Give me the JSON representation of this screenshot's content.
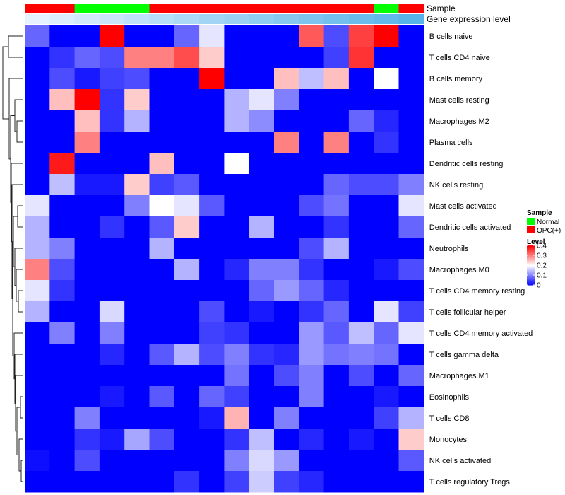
{
  "chart_data": {
    "type": "heatmap",
    "title": "",
    "annotation_labels": {
      "sample": "Sample",
      "expression": "Gene expression level"
    },
    "sample_groups": [
      "OPC(+)",
      "OPC(+)",
      "Normal",
      "Normal",
      "Normal",
      "OPC(+)",
      "OPC(+)",
      "OPC(+)",
      "OPC(+)",
      "OPC(+)",
      "OPC(+)",
      "OPC(+)",
      "OPC(+)",
      "OPC(+)",
      "Normal",
      "OPC(+)"
    ],
    "expression_levels": [
      0,
      0.07,
      0.14,
      0.2,
      0.27,
      0.33,
      0.4,
      0.47,
      0.53,
      0.6,
      0.67,
      0.73,
      0.8,
      0.87,
      0.93,
      1
    ],
    "rows": [
      "B cells naive",
      "T cells CD4 naive",
      "B cells memory",
      "Mast cells resting",
      "Macrophages M2",
      "Plasma cells",
      "Dendritic cells resting",
      "NK cells resting",
      "Mast cells activated",
      "Dendritic cells activated",
      "Neutrophils",
      "Macrophages M0",
      "T cells CD4 memory resting",
      "T cells follicular helper",
      "T cells CD4 memory activated",
      "T cells gamma delta",
      "Macrophages M1",
      "Eosinophils",
      "T cells CD8",
      "Monocytes",
      "NK cells activated",
      "T cells regulatory  Tregs"
    ],
    "values": [
      [
        0.08,
        0.0,
        0.0,
        0.4,
        0.0,
        0.0,
        0.08,
        0.18,
        0.0,
        0.0,
        0.0,
        0.33,
        0.06,
        0.35,
        0.4,
        0.0
      ],
      [
        0.0,
        0.04,
        0.08,
        0.06,
        0.3,
        0.3,
        0.34,
        0.24,
        0.0,
        0.0,
        0.0,
        0.0,
        0.05,
        0.36,
        0.0,
        0.0
      ],
      [
        0.0,
        0.06,
        0.02,
        0.05,
        0.06,
        0.0,
        0.0,
        0.4,
        0.0,
        0.0,
        0.25,
        0.15,
        0.25,
        0.0,
        0.2,
        0.0
      ],
      [
        0.0,
        0.25,
        0.4,
        0.04,
        0.24,
        0.0,
        0.0,
        0.0,
        0.14,
        0.18,
        0.1,
        0.0,
        0.0,
        0.0,
        0.0,
        0.0
      ],
      [
        0.0,
        0.0,
        0.25,
        0.04,
        0.14,
        0.0,
        0.0,
        0.0,
        0.14,
        0.11,
        0.0,
        0.0,
        0.0,
        0.08,
        0.03,
        0.0
      ],
      [
        0.0,
        0.0,
        0.3,
        0.0,
        0.0,
        0.0,
        0.0,
        0.0,
        0.0,
        0.0,
        0.3,
        0.0,
        0.3,
        0.0,
        0.04,
        0.0
      ],
      [
        0.0,
        0.38,
        0.0,
        0.0,
        0.0,
        0.25,
        0.0,
        0.0,
        0.2,
        0.0,
        0.0,
        0.0,
        0.0,
        0.0,
        0.0,
        0.0
      ],
      [
        0.0,
        0.15,
        0.02,
        0.02,
        0.24,
        0.05,
        0.07,
        0.0,
        0.0,
        0.0,
        0.0,
        0.0,
        0.08,
        0.06,
        0.06,
        0.1
      ],
      [
        0.18,
        0.0,
        0.0,
        0.0,
        0.1,
        0.2,
        0.18,
        0.07,
        0.0,
        0.0,
        0.0,
        0.06,
        0.09,
        0.0,
        0.0,
        0.18
      ],
      [
        0.14,
        0.0,
        0.0,
        0.04,
        0.0,
        0.07,
        0.24,
        0.0,
        0.0,
        0.14,
        0.0,
        0.0,
        0.04,
        0.0,
        0.0,
        0.08
      ],
      [
        0.14,
        0.1,
        0.0,
        0.0,
        0.0,
        0.14,
        0.0,
        0.0,
        0.0,
        0.0,
        0.0,
        0.06,
        0.14,
        0.0,
        0.0,
        0.0
      ],
      [
        0.3,
        0.06,
        0.0,
        0.0,
        0.0,
        0.0,
        0.14,
        0.0,
        0.03,
        0.1,
        0.1,
        0.04,
        0.0,
        0.0,
        0.02,
        0.06
      ],
      [
        0.18,
        0.04,
        0.0,
        0.0,
        0.0,
        0.0,
        0.0,
        0.0,
        0.0,
        0.08,
        0.12,
        0.08,
        0.03,
        0.0,
        0.0,
        0.0
      ],
      [
        0.14,
        0.0,
        0.0,
        0.17,
        0.0,
        0.0,
        0.0,
        0.06,
        0.0,
        0.02,
        0.0,
        0.04,
        0.08,
        0.0,
        0.18,
        0.05
      ],
      [
        0.0,
        0.1,
        0.0,
        0.1,
        0.0,
        0.0,
        0.0,
        0.05,
        0.04,
        0.0,
        0.0,
        0.12,
        0.07,
        0.15,
        0.08,
        0.18
      ],
      [
        0.0,
        0.0,
        0.0,
        0.03,
        0.0,
        0.07,
        0.14,
        0.06,
        0.1,
        0.04,
        0.03,
        0.12,
        0.09,
        0.1,
        0.09,
        0.0
      ],
      [
        0.0,
        0.0,
        0.0,
        0.0,
        0.0,
        0.0,
        0.0,
        0.0,
        0.09,
        0.0,
        0.06,
        0.1,
        0.0,
        0.06,
        0.0,
        0.08
      ],
      [
        0.0,
        0.0,
        0.0,
        0.02,
        0.0,
        0.07,
        0.0,
        0.08,
        0.05,
        0.0,
        0.0,
        0.1,
        0.0,
        0.0,
        0.02,
        0.0
      ],
      [
        0.0,
        0.0,
        0.1,
        0.0,
        0.0,
        0.0,
        0.0,
        0.02,
        0.26,
        0.0,
        0.1,
        0.0,
        0.0,
        0.0,
        0.05,
        0.14
      ],
      [
        0.0,
        0.0,
        0.04,
        0.02,
        0.13,
        0.06,
        0.0,
        0.0,
        0.04,
        0.15,
        0.0,
        0.03,
        0.0,
        0.02,
        0.0,
        0.24
      ],
      [
        0.01,
        0.0,
        0.06,
        0.0,
        0.0,
        0.0,
        0.0,
        0.0,
        0.1,
        0.17,
        0.12,
        0.0,
        0.0,
        0.0,
        0.0,
        0.07
      ],
      [
        0.0,
        0.0,
        0.0,
        0.0,
        0.0,
        0.0,
        0.04,
        0.0,
        0.05,
        0.16,
        0.05,
        0.03,
        0.0,
        0.0,
        0.0,
        0.0
      ]
    ],
    "color_scale": {
      "min": 0,
      "mid": 0.2,
      "max": 0.4,
      "low": "#0000ff",
      "midColor": "#ffffff",
      "high": "#ff0000"
    },
    "legend": {
      "sample_title": "Sample",
      "sample_entries": [
        {
          "label": "Normal",
          "color": "#00ff00"
        },
        {
          "label": "OPC(+)",
          "color": "#ff0000"
        }
      ],
      "level_title": "Level",
      "level_ticks": [
        {
          "label": "0.4",
          "value": 0.4
        },
        {
          "label": "0.3",
          "value": 0.3
        },
        {
          "label": "0.2",
          "value": 0.2
        },
        {
          "label": "0.1",
          "value": 0.1
        },
        {
          "label": "0",
          "value": 0
        }
      ]
    },
    "expression_colors": {
      "light": "#e6f2ff",
      "dark": "#56b4e9"
    },
    "dendrogram": "row-clustering",
    "legend_placement": "right"
  }
}
